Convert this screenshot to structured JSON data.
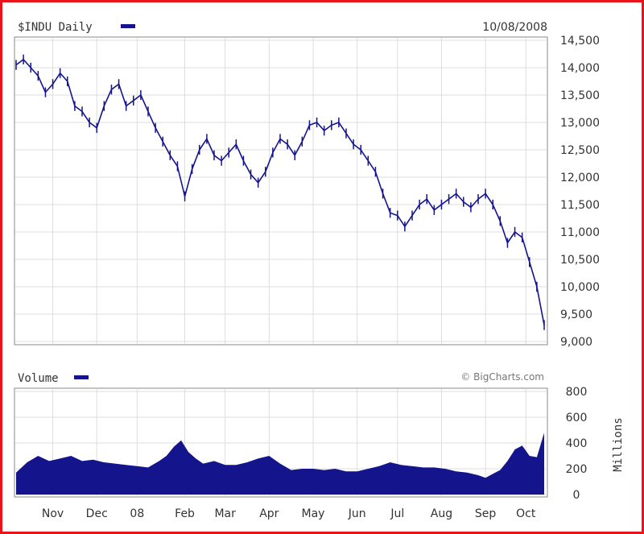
{
  "chart_data": {
    "type": "line",
    "colors": {
      "series": "#14148c",
      "frame": "#e8141b",
      "grid": "#dddddd"
    },
    "price_panel": {
      "title": "$INDU Daily",
      "date": "10/08/2008",
      "ylim": [
        9000,
        14500
      ],
      "yticks": [
        "14,500",
        "14,000",
        "13,500",
        "13,000",
        "12,500",
        "12,000",
        "11,500",
        "11,000",
        "10,500",
        "10,000",
        "9,500",
        "9,000"
      ],
      "points": [
        [
          0,
          14050
        ],
        [
          2,
          14150
        ],
        [
          4,
          14000
        ],
        [
          6,
          13850
        ],
        [
          8,
          13550
        ],
        [
          10,
          13700
        ],
        [
          12,
          13900
        ],
        [
          14,
          13750
        ],
        [
          16,
          13300
        ],
        [
          18,
          13200
        ],
        [
          20,
          13000
        ],
        [
          22,
          12900
        ],
        [
          24,
          13300
        ],
        [
          26,
          13600
        ],
        [
          28,
          13700
        ],
        [
          30,
          13300
        ],
        [
          32,
          13400
        ],
        [
          34,
          13500
        ],
        [
          36,
          13200
        ],
        [
          38,
          12900
        ],
        [
          40,
          12650
        ],
        [
          42,
          12400
        ],
        [
          44,
          12200
        ],
        [
          46,
          11650
        ],
        [
          48,
          12150
        ],
        [
          50,
          12500
        ],
        [
          52,
          12700
        ],
        [
          54,
          12400
        ],
        [
          56,
          12300
        ],
        [
          58,
          12450
        ],
        [
          60,
          12600
        ],
        [
          62,
          12300
        ],
        [
          64,
          12050
        ],
        [
          66,
          11900
        ],
        [
          68,
          12100
        ],
        [
          70,
          12450
        ],
        [
          72,
          12700
        ],
        [
          74,
          12600
        ],
        [
          76,
          12400
        ],
        [
          78,
          12650
        ],
        [
          80,
          12950
        ],
        [
          82,
          13000
        ],
        [
          84,
          12850
        ],
        [
          86,
          12950
        ],
        [
          88,
          13000
        ],
        [
          90,
          12800
        ],
        [
          92,
          12600
        ],
        [
          94,
          12500
        ],
        [
          96,
          12300
        ],
        [
          98,
          12100
        ],
        [
          100,
          11700
        ],
        [
          102,
          11350
        ],
        [
          104,
          11300
        ],
        [
          106,
          11100
        ],
        [
          108,
          11300
        ],
        [
          110,
          11500
        ],
        [
          112,
          11600
        ],
        [
          114,
          11400
        ],
        [
          116,
          11500
        ],
        [
          118,
          11600
        ],
        [
          120,
          11700
        ],
        [
          122,
          11550
        ],
        [
          124,
          11450
        ],
        [
          126,
          11600
        ],
        [
          128,
          11700
        ],
        [
          130,
          11500
        ],
        [
          132,
          11200
        ],
        [
          134,
          10800
        ],
        [
          136,
          11000
        ],
        [
          138,
          10900
        ],
        [
          140,
          10450
        ],
        [
          142,
          10000
        ],
        [
          144,
          9300
        ]
      ]
    },
    "volume_panel": {
      "title": "Volume",
      "credit": "© BigCharts.com",
      "ylabel": "Millions",
      "ylim": [
        0,
        800
      ],
      "yticks": [
        "800",
        "600",
        "400",
        "200",
        "0"
      ],
      "points": [
        [
          0,
          170
        ],
        [
          3,
          250
        ],
        [
          6,
          300
        ],
        [
          9,
          260
        ],
        [
          12,
          280
        ],
        [
          15,
          300
        ],
        [
          18,
          260
        ],
        [
          21,
          270
        ],
        [
          24,
          250
        ],
        [
          27,
          240
        ],
        [
          30,
          230
        ],
        [
          33,
          220
        ],
        [
          36,
          210
        ],
        [
          39,
          260
        ],
        [
          41,
          300
        ],
        [
          43,
          370
        ],
        [
          45,
          420
        ],
        [
          47,
          330
        ],
        [
          49,
          280
        ],
        [
          51,
          240
        ],
        [
          54,
          260
        ],
        [
          57,
          230
        ],
        [
          60,
          230
        ],
        [
          63,
          250
        ],
        [
          66,
          280
        ],
        [
          69,
          300
        ],
        [
          72,
          240
        ],
        [
          75,
          190
        ],
        [
          78,
          200
        ],
        [
          81,
          200
        ],
        [
          84,
          190
        ],
        [
          87,
          200
        ],
        [
          90,
          180
        ],
        [
          93,
          180
        ],
        [
          96,
          200
        ],
        [
          99,
          220
        ],
        [
          102,
          250
        ],
        [
          105,
          230
        ],
        [
          108,
          220
        ],
        [
          111,
          210
        ],
        [
          114,
          210
        ],
        [
          117,
          200
        ],
        [
          120,
          180
        ],
        [
          123,
          170
        ],
        [
          126,
          150
        ],
        [
          128,
          130
        ],
        [
          130,
          160
        ],
        [
          132,
          190
        ],
        [
          134,
          260
        ],
        [
          136,
          350
        ],
        [
          138,
          380
        ],
        [
          140,
          300
        ],
        [
          142,
          290
        ],
        [
          144,
          480
        ]
      ]
    },
    "x_axis": {
      "tick_labels": [
        "Nov",
        "Dec",
        "08",
        "Feb",
        "Mar",
        "Apr",
        "May",
        "Jun",
        "Jul",
        "Aug",
        "Sep",
        "Oct"
      ],
      "tick_positions": [
        10,
        22,
        33,
        46,
        57,
        69,
        81,
        93,
        104,
        116,
        128,
        139
      ],
      "range": [
        0,
        144
      ]
    }
  }
}
